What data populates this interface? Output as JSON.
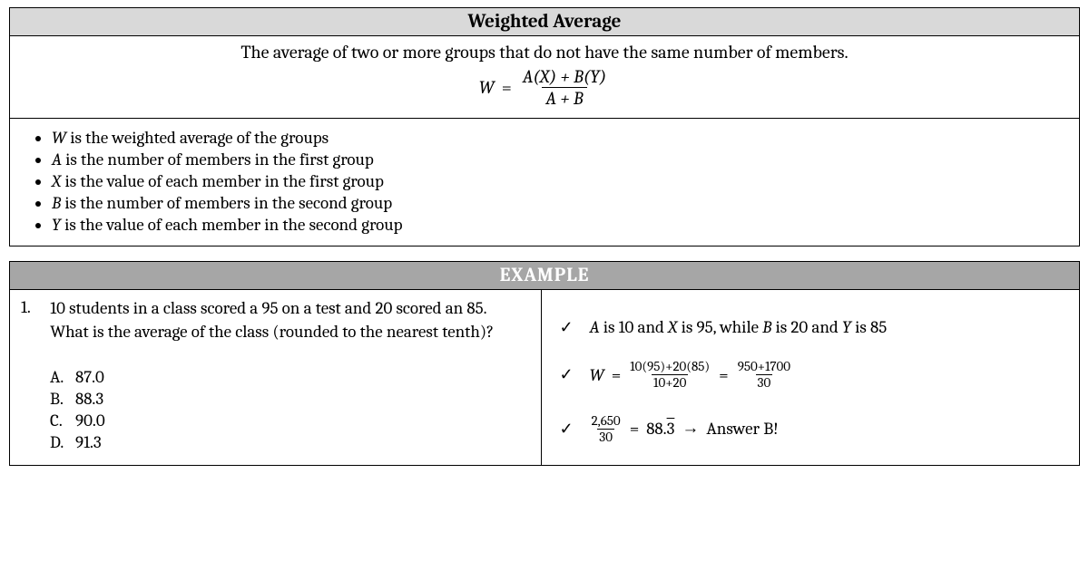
{
  "header": {
    "title": "Weighted Average"
  },
  "description": "The average of two or more groups that do not have the same number of members.",
  "formula": {
    "lhs": "W",
    "numerator": "A(X) + B(Y)",
    "denominator": "A + B"
  },
  "definitions": [
    {
      "var": "W",
      "text": " is the weighted average of the groups"
    },
    {
      "var": "A",
      "text": " is the number of members in the first group"
    },
    {
      "var": "X",
      "text": " is the value of each member in the first group"
    },
    {
      "var": "B",
      "text": " is the number of members in the second group"
    },
    {
      "var": "Y",
      "text": " is the value of each member in the second group"
    }
  ],
  "example": {
    "label": "EXAMPLE",
    "number": "1.",
    "question": "10 students in a class scored a 95 on a test and 20 scored an 85.  What is the average of the class (rounded to the nearest tenth)?",
    "choices": [
      {
        "letter": "A.",
        "value": "87.0"
      },
      {
        "letter": "B.",
        "value": "88.3"
      },
      {
        "letter": "C.",
        "value": "90.0"
      },
      {
        "letter": "D.",
        "value": "91.3"
      }
    ],
    "solution": {
      "line1_pre": "A",
      "line1_mid1": " is 10 and ",
      "line1_x": "X",
      "line1_mid2": " is 95, while ",
      "line1_b": "B",
      "line1_mid3": " is 20 and ",
      "line1_y": "Y",
      "line1_end": " is 85",
      "line2_W": "W",
      "line2_num1": "10(95)+20(85)",
      "line2_den1": "10+20",
      "line2_num2": "950+1700",
      "line2_den2": "30",
      "line3_num": "2,650",
      "line3_den": "30",
      "line3_result_int": "88.",
      "line3_result_rep": "3",
      "line3_arrow": " → ",
      "line3_answer": "Answer B!"
    }
  },
  "colors": {
    "title_bg": "#d9d9d9",
    "example_bg": "#a6a6a6",
    "border": "#000000",
    "text": "#000000"
  }
}
